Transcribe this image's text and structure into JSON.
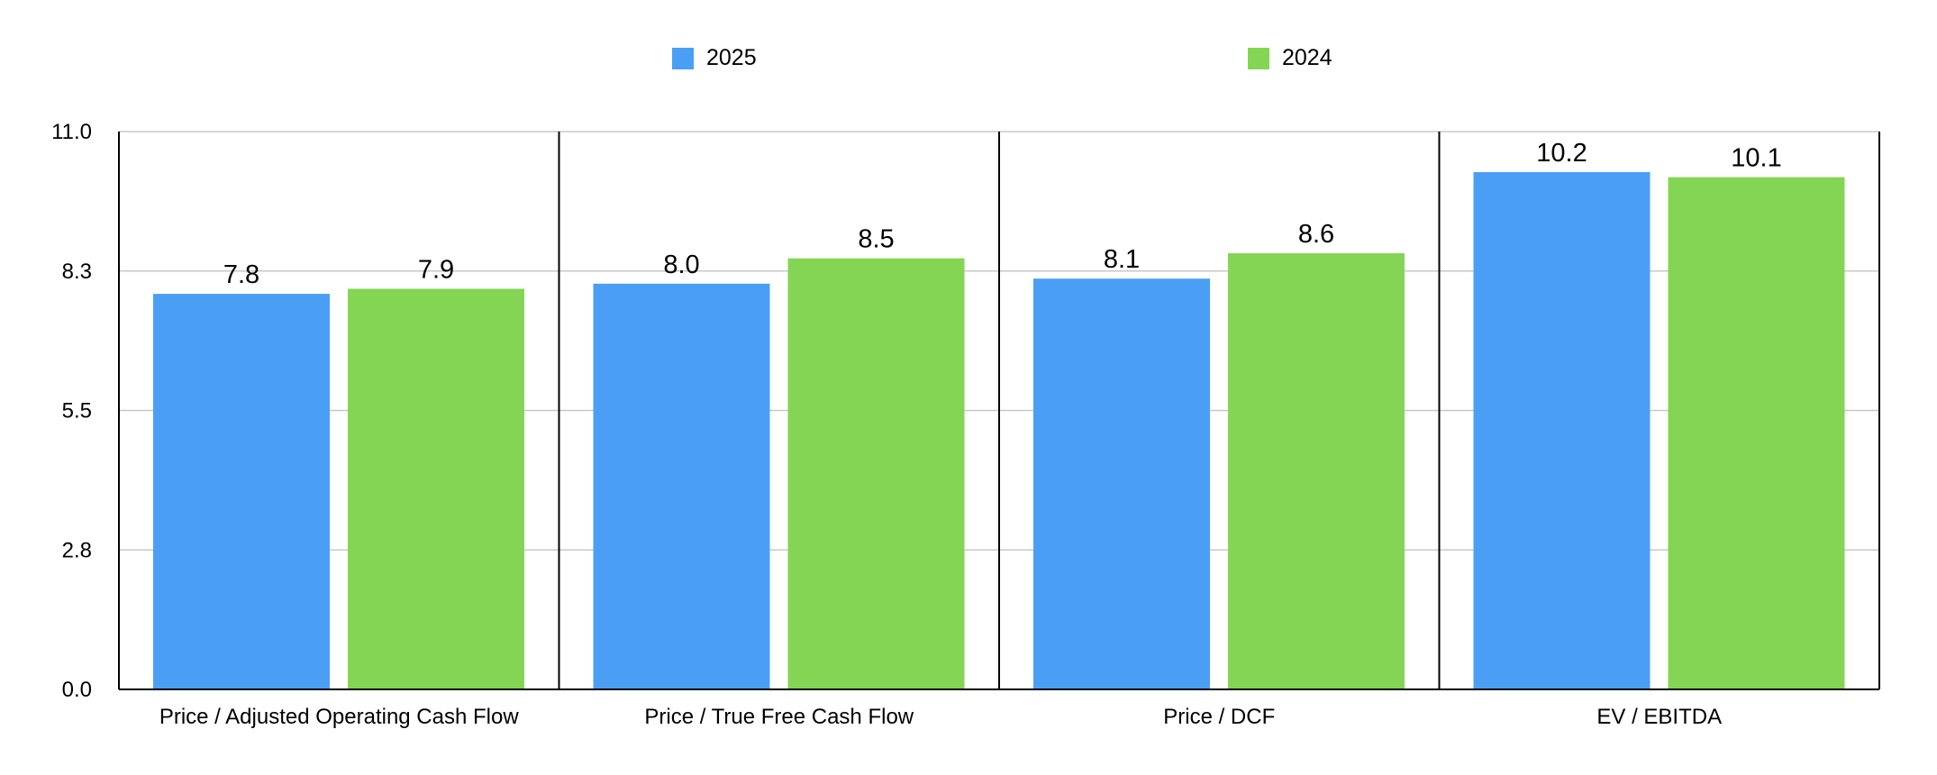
{
  "chart_data": {
    "type": "bar",
    "title": "",
    "xlabel": "",
    "ylabel": "",
    "ylim": [
      0,
      11.0
    ],
    "yticks": [
      "0.0",
      "2.8",
      "5.5",
      "8.3",
      "11.0"
    ],
    "ytick_values": [
      0,
      2.75,
      5.5,
      8.25,
      11.0
    ],
    "categories": [
      "Price / Adjusted Operating Cash Flow",
      "Price / True Free Cash Flow",
      "Price / DCF",
      "EV / EBITDA"
    ],
    "series": [
      {
        "name": "2025",
        "color": "#4A9FF5",
        "values": [
          7.8,
          8.0,
          8.1,
          10.2
        ]
      },
      {
        "name": "2024",
        "color": "#84D553",
        "values": [
          7.9,
          8.5,
          8.6,
          10.1
        ]
      }
    ],
    "grid": true,
    "legend_position": "top"
  }
}
